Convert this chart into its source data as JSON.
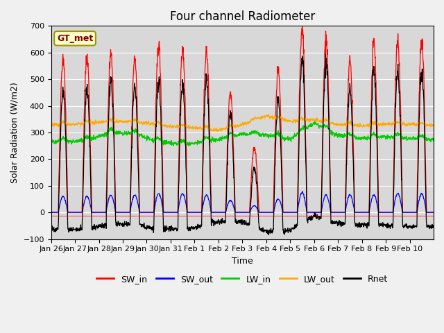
{
  "title": "Four channel Radiometer",
  "xlabel": "Time",
  "ylabel": "Solar Radiation (W/m2)",
  "annotation": "GT_met",
  "ylim": [
    -100,
    700
  ],
  "yticks": [
    -100,
    0,
    100,
    200,
    300,
    400,
    500,
    600,
    700
  ],
  "xtick_labels": [
    "Jan 26",
    "Jan 27",
    "Jan 28",
    "Jan 29",
    "Jan 30",
    "Jan 31",
    "Feb 1",
    "Feb 2",
    "Feb 3",
    "Feb 4",
    "Feb 5",
    "Feb 6",
    "Feb 7",
    "Feb 8",
    "Feb 9",
    "Feb 10"
  ],
  "n_days": 16,
  "colors": {
    "SW_in": "#ff0000",
    "SW_out": "#0000ff",
    "LW_in": "#00cc00",
    "LW_out": "#ffaa00",
    "Rnet": "#000000"
  },
  "background_color": "#d8d8d8",
  "fig_background": "#f0f0f0",
  "title_fontsize": 12,
  "axis_label_fontsize": 9,
  "tick_fontsize": 8,
  "legend_fontsize": 9
}
